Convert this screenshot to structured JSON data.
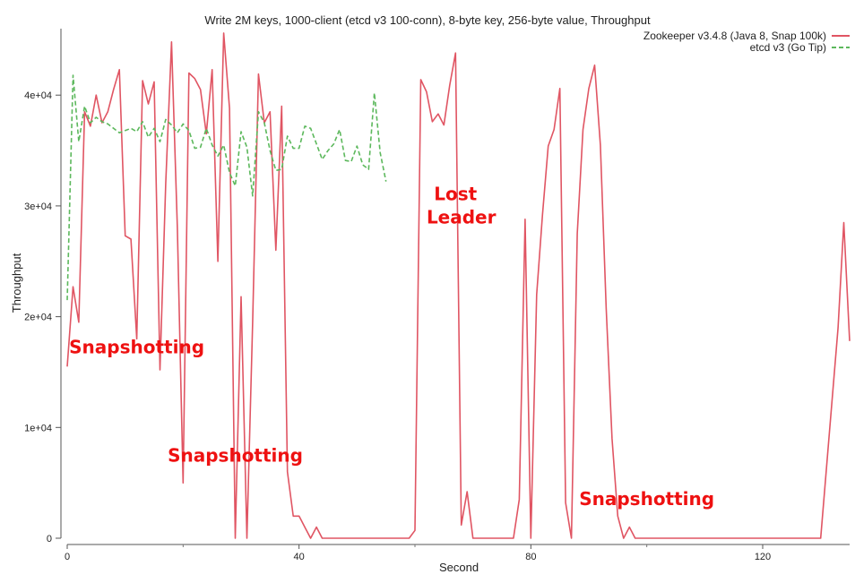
{
  "chart_data": {
    "type": "line",
    "title": "Write 2M keys, 1000-client (etcd v3 100-conn), 8-byte key, 256-byte value, Throughput",
    "xlabel": "Second",
    "ylabel": "Throughput",
    "xlim": [
      0,
      135
    ],
    "ylim": [
      0,
      46000
    ],
    "x_ticks": [
      0,
      40,
      80,
      120
    ],
    "x_tick_labels": [
      "0",
      "40",
      "80",
      "120"
    ],
    "y_ticks": [
      0,
      10000,
      20000,
      30000,
      40000
    ],
    "y_tick_labels": [
      "0",
      "1e+04",
      "2e+04",
      "3e+04",
      "4e+04"
    ],
    "grid": false,
    "legend_position": "top-right",
    "series": [
      {
        "name": "Zookeeper v3.4.8 (Java 8, Snap 100k)",
        "color": "#e05563",
        "style": "solid",
        "x": [
          0,
          1,
          2,
          3,
          4,
          5,
          6,
          7,
          8,
          9,
          10,
          11,
          12,
          13,
          14,
          15,
          16,
          17,
          18,
          19,
          20,
          21,
          22,
          23,
          24,
          25,
          26,
          27,
          28,
          29,
          30,
          31,
          32,
          33,
          34,
          35,
          36,
          37,
          38,
          39,
          40,
          41,
          42,
          43,
          44,
          45,
          46,
          47,
          48,
          49,
          50,
          51,
          52,
          53,
          54,
          55,
          56,
          57,
          58,
          59,
          60,
          61,
          62,
          63,
          64,
          65,
          66,
          67,
          68,
          69,
          70,
          71,
          72,
          73,
          74,
          75,
          76,
          77,
          78,
          79,
          80,
          81,
          82,
          83,
          84,
          85,
          86,
          87,
          88,
          89,
          90,
          91,
          92,
          93,
          94,
          95,
          96,
          97,
          98,
          99,
          100,
          105,
          110,
          115,
          120,
          125,
          130,
          133,
          134,
          135
        ],
        "values": [
          15500,
          22700,
          19500,
          38500,
          37200,
          40000,
          37500,
          38500,
          40500,
          42300,
          27300,
          27000,
          18000,
          41300,
          39200,
          41200,
          15200,
          32000,
          44800,
          28000,
          5000,
          42000,
          41500,
          40500,
          36500,
          42300,
          25000,
          45600,
          38800,
          0,
          21800,
          0,
          19500,
          41900,
          37500,
          38500,
          26000,
          39000,
          6000,
          2000,
          2000,
          1000,
          0,
          1000,
          0,
          0,
          0,
          0,
          0,
          0,
          0,
          0,
          0,
          0,
          0,
          0,
          0,
          0,
          0,
          0,
          700,
          41400,
          40300,
          37600,
          38300,
          37300,
          40900,
          43800,
          1200,
          4200,
          0,
          0,
          0,
          0,
          0,
          0,
          0,
          0,
          3500,
          28800,
          0,
          22000,
          29200,
          35400,
          36900,
          40600,
          3200,
          0,
          27500,
          36900,
          40600,
          42700,
          35500,
          20700,
          9000,
          2000,
          0,
          1000,
          0,
          0,
          0,
          0,
          0,
          0,
          0,
          0,
          0,
          19000,
          28500,
          17800
        ]
      },
      {
        "name": "etcd v3 (Go Tip)",
        "color": "#5cb85c",
        "style": "dashed",
        "x": [
          0,
          1,
          2,
          3,
          4,
          5,
          6,
          7,
          8,
          9,
          10,
          11,
          12,
          13,
          14,
          15,
          16,
          17,
          18,
          19,
          20,
          21,
          22,
          23,
          24,
          25,
          26,
          27,
          28,
          29,
          30,
          31,
          32,
          33,
          34,
          35,
          36,
          37,
          38,
          39,
          40,
          41,
          42,
          43,
          44,
          45,
          46,
          47,
          48,
          49,
          50,
          51,
          52,
          53,
          54,
          55
        ],
        "values": [
          21500,
          41800,
          35800,
          39000,
          37500,
          38000,
          37600,
          37400,
          37000,
          36600,
          36800,
          37000,
          36700,
          37600,
          36200,
          37000,
          35800,
          37800,
          37300,
          36600,
          37400,
          36800,
          35200,
          35300,
          37000,
          35500,
          34500,
          35500,
          33000,
          31800,
          36700,
          35300,
          30900,
          38500,
          37500,
          35000,
          33200,
          33300,
          36300,
          35200,
          35200,
          37200,
          37000,
          35600,
          34200,
          35000,
          35600,
          36900,
          34100,
          34000,
          35400,
          33700,
          33300,
          40200,
          34800,
          32200
        ]
      }
    ],
    "annotations": [
      {
        "text": "Snapshotting",
        "x": 12,
        "y": 16700
      },
      {
        "text": "Snapshotting",
        "x": 29,
        "y": 6900
      },
      {
        "text": "Lost",
        "x": 67,
        "y": 30500
      },
      {
        "text": "Leader",
        "x": 68,
        "y": 28400
      },
      {
        "text": "Snapshotting",
        "x": 100,
        "y": 3000
      }
    ]
  }
}
